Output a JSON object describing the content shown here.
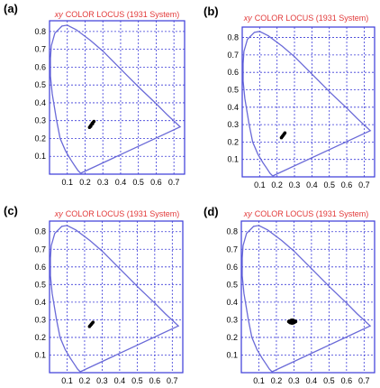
{
  "colors": {
    "frame": "#3a3ad8",
    "grid": "#3a3ad8",
    "locus": "#6a6ad8",
    "title": "#e23a3a",
    "marker": "#000000",
    "background": "#ffffff"
  },
  "chart_data": [
    {
      "type": "scatter",
      "panel_label": "(a)",
      "title_prefix": "xy",
      "title": "COLOR LOCUS (1931 System)",
      "xlabel": "",
      "ylabel": "",
      "xlim": [
        0.0,
        0.76
      ],
      "ylim": [
        0.0,
        0.86
      ],
      "xticks": [
        0.1,
        0.2,
        0.3,
        0.4,
        0.5,
        0.6,
        0.7
      ],
      "yticks": [
        0.1,
        0.2,
        0.3,
        0.4,
        0.5,
        0.6,
        0.7,
        0.8
      ],
      "xtick_labels": [
        "0.1",
        "0.2",
        "0.3",
        "0.4",
        "0.5",
        "0.6",
        "0.7"
      ],
      "ytick_labels": [
        "0.1",
        "0.2",
        "0.3",
        "0.4",
        "0.5",
        "0.6",
        "0.7",
        "0.8"
      ],
      "grid": true,
      "locus": [
        [
          0.175,
          0.005
        ],
        [
          0.17,
          0.01
        ],
        [
          0.16,
          0.02
        ],
        [
          0.14,
          0.05
        ],
        [
          0.12,
          0.08
        ],
        [
          0.09,
          0.13
        ],
        [
          0.06,
          0.2
        ],
        [
          0.04,
          0.3
        ],
        [
          0.015,
          0.45
        ],
        [
          0.005,
          0.55
        ],
        [
          0.005,
          0.65
        ],
        [
          0.01,
          0.72
        ],
        [
          0.03,
          0.79
        ],
        [
          0.07,
          0.83
        ],
        [
          0.1,
          0.835
        ],
        [
          0.15,
          0.81
        ],
        [
          0.23,
          0.75
        ],
        [
          0.3,
          0.69
        ],
        [
          0.37,
          0.62
        ],
        [
          0.44,
          0.55
        ],
        [
          0.51,
          0.48
        ],
        [
          0.6,
          0.395
        ],
        [
          0.66,
          0.335
        ],
        [
          0.735,
          0.265
        ],
        [
          0.175,
          0.005
        ]
      ],
      "points": [
        [
          0.225,
          0.262
        ],
        [
          0.23,
          0.27
        ],
        [
          0.235,
          0.277
        ],
        [
          0.24,
          0.285
        ],
        [
          0.245,
          0.29
        ],
        [
          0.25,
          0.296
        ],
        [
          0.232,
          0.268
        ],
        [
          0.242,
          0.282
        ]
      ]
    },
    {
      "type": "scatter",
      "panel_label": "(b)",
      "title_prefix": "xy",
      "title": "COLOR LOCUS (1931 System)",
      "xlabel": "",
      "ylabel": "",
      "xlim": [
        0.0,
        0.76
      ],
      "ylim": [
        0.0,
        0.86
      ],
      "xticks": [
        0.1,
        0.2,
        0.3,
        0.4,
        0.5,
        0.6,
        0.7
      ],
      "yticks": [
        0.1,
        0.2,
        0.3,
        0.4,
        0.5,
        0.6,
        0.7,
        0.8
      ],
      "xtick_labels": [
        "0.1",
        "0.2",
        "0.3",
        "0.4",
        "0.5",
        "0.6",
        "0.7"
      ],
      "ytick_labels": [
        "0.1",
        "0.2",
        "0.3",
        "0.4",
        "0.5",
        "0.6",
        "0.7",
        "0.8"
      ],
      "grid": true,
      "locus": [
        [
          0.175,
          0.005
        ],
        [
          0.17,
          0.01
        ],
        [
          0.16,
          0.02
        ],
        [
          0.14,
          0.05
        ],
        [
          0.12,
          0.08
        ],
        [
          0.09,
          0.13
        ],
        [
          0.06,
          0.2
        ],
        [
          0.04,
          0.3
        ],
        [
          0.015,
          0.45
        ],
        [
          0.005,
          0.55
        ],
        [
          0.005,
          0.65
        ],
        [
          0.01,
          0.72
        ],
        [
          0.03,
          0.79
        ],
        [
          0.07,
          0.83
        ],
        [
          0.1,
          0.835
        ],
        [
          0.15,
          0.81
        ],
        [
          0.23,
          0.75
        ],
        [
          0.3,
          0.69
        ],
        [
          0.37,
          0.62
        ],
        [
          0.44,
          0.55
        ],
        [
          0.51,
          0.48
        ],
        [
          0.6,
          0.395
        ],
        [
          0.66,
          0.335
        ],
        [
          0.735,
          0.265
        ],
        [
          0.175,
          0.005
        ]
      ],
      "points": [
        [
          0.225,
          0.225
        ],
        [
          0.23,
          0.232
        ],
        [
          0.235,
          0.238
        ],
        [
          0.24,
          0.245
        ],
        [
          0.245,
          0.252
        ]
      ]
    },
    {
      "type": "scatter",
      "panel_label": "(c)",
      "title_prefix": "xy",
      "title": "COLOR LOCUS (1931 System)",
      "xlabel": "",
      "ylabel": "",
      "xlim": [
        0.0,
        0.76
      ],
      "ylim": [
        0.0,
        0.86
      ],
      "xticks": [
        0.1,
        0.2,
        0.3,
        0.4,
        0.5,
        0.6,
        0.7
      ],
      "yticks": [
        0.1,
        0.2,
        0.3,
        0.4,
        0.5,
        0.6,
        0.7,
        0.8
      ],
      "xtick_labels": [
        "0.1",
        "0.2",
        "0.3",
        "0.4",
        "0.5",
        "0.6",
        "0.7"
      ],
      "ytick_labels": [
        "0.1",
        "0.2",
        "0.3",
        "0.4",
        "0.5",
        "0.6",
        "0.7",
        "0.8"
      ],
      "grid": true,
      "locus": [
        [
          0.175,
          0.005
        ],
        [
          0.17,
          0.01
        ],
        [
          0.16,
          0.02
        ],
        [
          0.14,
          0.05
        ],
        [
          0.12,
          0.08
        ],
        [
          0.09,
          0.13
        ],
        [
          0.06,
          0.2
        ],
        [
          0.04,
          0.3
        ],
        [
          0.015,
          0.45
        ],
        [
          0.005,
          0.55
        ],
        [
          0.005,
          0.65
        ],
        [
          0.01,
          0.72
        ],
        [
          0.03,
          0.79
        ],
        [
          0.07,
          0.83
        ],
        [
          0.1,
          0.835
        ],
        [
          0.15,
          0.81
        ],
        [
          0.23,
          0.75
        ],
        [
          0.3,
          0.69
        ],
        [
          0.37,
          0.62
        ],
        [
          0.44,
          0.55
        ],
        [
          0.51,
          0.48
        ],
        [
          0.6,
          0.395
        ],
        [
          0.66,
          0.335
        ],
        [
          0.735,
          0.265
        ],
        [
          0.175,
          0.005
        ]
      ],
      "points": [
        [
          0.228,
          0.262
        ],
        [
          0.233,
          0.268
        ],
        [
          0.238,
          0.274
        ],
        [
          0.243,
          0.28
        ],
        [
          0.248,
          0.286
        ]
      ]
    },
    {
      "type": "scatter",
      "panel_label": "(d)",
      "title_prefix": "xy",
      "title": "COLOR LOCUS (1931 System)",
      "xlabel": "",
      "ylabel": "",
      "xlim": [
        0.0,
        0.76
      ],
      "ylim": [
        0.0,
        0.86
      ],
      "xticks": [
        0.1,
        0.2,
        0.3,
        0.4,
        0.5,
        0.6,
        0.7
      ],
      "yticks": [
        0.1,
        0.2,
        0.3,
        0.4,
        0.5,
        0.6,
        0.7,
        0.8
      ],
      "xtick_labels": [
        "0.1",
        "0.2",
        "0.3",
        "0.4",
        "0.5",
        "0.6",
        "0.7"
      ],
      "ytick_labels": [
        "0.1",
        "0.2",
        "0.3",
        "0.4",
        "0.5",
        "0.6",
        "0.7",
        "0.8"
      ],
      "grid": true,
      "locus": [
        [
          0.175,
          0.005
        ],
        [
          0.17,
          0.01
        ],
        [
          0.16,
          0.02
        ],
        [
          0.14,
          0.05
        ],
        [
          0.12,
          0.08
        ],
        [
          0.09,
          0.13
        ],
        [
          0.06,
          0.2
        ],
        [
          0.04,
          0.3
        ],
        [
          0.015,
          0.45
        ],
        [
          0.005,
          0.55
        ],
        [
          0.005,
          0.65
        ],
        [
          0.01,
          0.72
        ],
        [
          0.03,
          0.79
        ],
        [
          0.07,
          0.83
        ],
        [
          0.1,
          0.835
        ],
        [
          0.15,
          0.81
        ],
        [
          0.23,
          0.75
        ],
        [
          0.3,
          0.69
        ],
        [
          0.37,
          0.62
        ],
        [
          0.44,
          0.55
        ],
        [
          0.51,
          0.48
        ],
        [
          0.6,
          0.395
        ],
        [
          0.66,
          0.335
        ],
        [
          0.735,
          0.265
        ],
        [
          0.175,
          0.005
        ]
      ],
      "points": [
        [
          0.27,
          0.29
        ],
        [
          0.275,
          0.293
        ],
        [
          0.28,
          0.295
        ],
        [
          0.285,
          0.297
        ],
        [
          0.29,
          0.298
        ],
        [
          0.295,
          0.297
        ],
        [
          0.3,
          0.295
        ],
        [
          0.305,
          0.293
        ],
        [
          0.31,
          0.29
        ],
        [
          0.275,
          0.286
        ],
        [
          0.28,
          0.283
        ],
        [
          0.285,
          0.282
        ],
        [
          0.29,
          0.281
        ],
        [
          0.295,
          0.282
        ],
        [
          0.3,
          0.284
        ],
        [
          0.305,
          0.287
        ],
        [
          0.285,
          0.29
        ],
        [
          0.295,
          0.29
        ]
      ]
    }
  ]
}
